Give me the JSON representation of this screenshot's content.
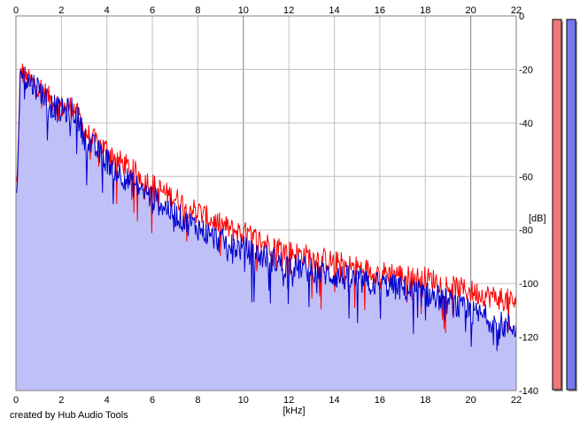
{
  "chart_data": {
    "type": "line",
    "x_unit_label": "[kHz]",
    "y_unit_label": "[dB]",
    "xlim": [
      0,
      22
    ],
    "ylim": [
      -140,
      0
    ],
    "x_ticks": [
      0,
      2,
      4,
      6,
      8,
      10,
      12,
      14,
      16,
      18,
      20,
      22
    ],
    "y_ticks": [
      0,
      -20,
      -40,
      -60,
      -80,
      -100,
      -120,
      -140
    ],
    "grid": true,
    "series": [
      {
        "color": "#ff0000",
        "x": [
          0.05,
          0.2,
          0.5,
          1.0,
          1.5,
          2.0,
          2.5,
          2.7,
          3.0,
          3.5,
          4.0,
          4.5,
          5.0,
          5.5,
          6.0,
          6.5,
          7.0,
          7.5,
          8.0,
          8.5,
          9.0,
          9.5,
          10.0,
          10.5,
          11.0,
          11.5,
          12.0,
          12.5,
          13.0,
          13.5,
          14.0,
          14.5,
          15.0,
          15.5,
          16.0,
          16.5,
          17.0,
          17.5,
          18.0,
          18.5,
          19.0,
          19.5,
          20.0,
          20.5,
          21.0,
          21.5,
          22.0
        ],
        "values": [
          -62,
          -20,
          -24,
          -26,
          -31,
          -34,
          -34,
          -37,
          -43,
          -47,
          -50,
          -54,
          -57,
          -60,
          -63,
          -66,
          -68,
          -71,
          -73,
          -76,
          -78,
          -80,
          -81,
          -83,
          -85,
          -86,
          -88,
          -89,
          -90,
          -91,
          -92,
          -93,
          -94,
          -95,
          -96,
          -96,
          -97,
          -98,
          -98,
          -99,
          -101,
          -102,
          -103,
          -104,
          -105,
          -106,
          -107
        ]
      },
      {
        "color": "#0000cc",
        "x": [
          0.05,
          0.2,
          0.5,
          1.0,
          1.5,
          2.0,
          2.5,
          2.7,
          3.0,
          3.5,
          4.0,
          4.5,
          5.0,
          5.5,
          6.0,
          6.5,
          7.0,
          7.5,
          8.0,
          8.5,
          9.0,
          9.5,
          10.0,
          10.5,
          11.0,
          11.5,
          12.0,
          12.5,
          13.0,
          13.5,
          14.0,
          14.5,
          15.0,
          15.5,
          16.0,
          16.5,
          17.0,
          17.5,
          18.0,
          18.5,
          19.0,
          19.5,
          20.0,
          20.5,
          21.0,
          21.5,
          22.0
        ],
        "values": [
          -66,
          -20,
          -24,
          -27,
          -33,
          -36,
          -35,
          -38,
          -45,
          -50,
          -54,
          -58,
          -62,
          -65,
          -68,
          -71,
          -74,
          -77,
          -79,
          -82,
          -84,
          -86,
          -87,
          -89,
          -90,
          -92,
          -93,
          -94,
          -95,
          -96,
          -97,
          -98,
          -99,
          -100,
          -100,
          -101,
          -102,
          -103,
          -104,
          -105,
          -107,
          -109,
          -111,
          -112,
          -114,
          -116,
          -116
        ]
      }
    ]
  },
  "meters": [
    {
      "color": "#f07878",
      "level": 1.0
    },
    {
      "color": "#7878f0",
      "level": 1.0
    }
  ],
  "credit": "created by Hub Audio Tools"
}
